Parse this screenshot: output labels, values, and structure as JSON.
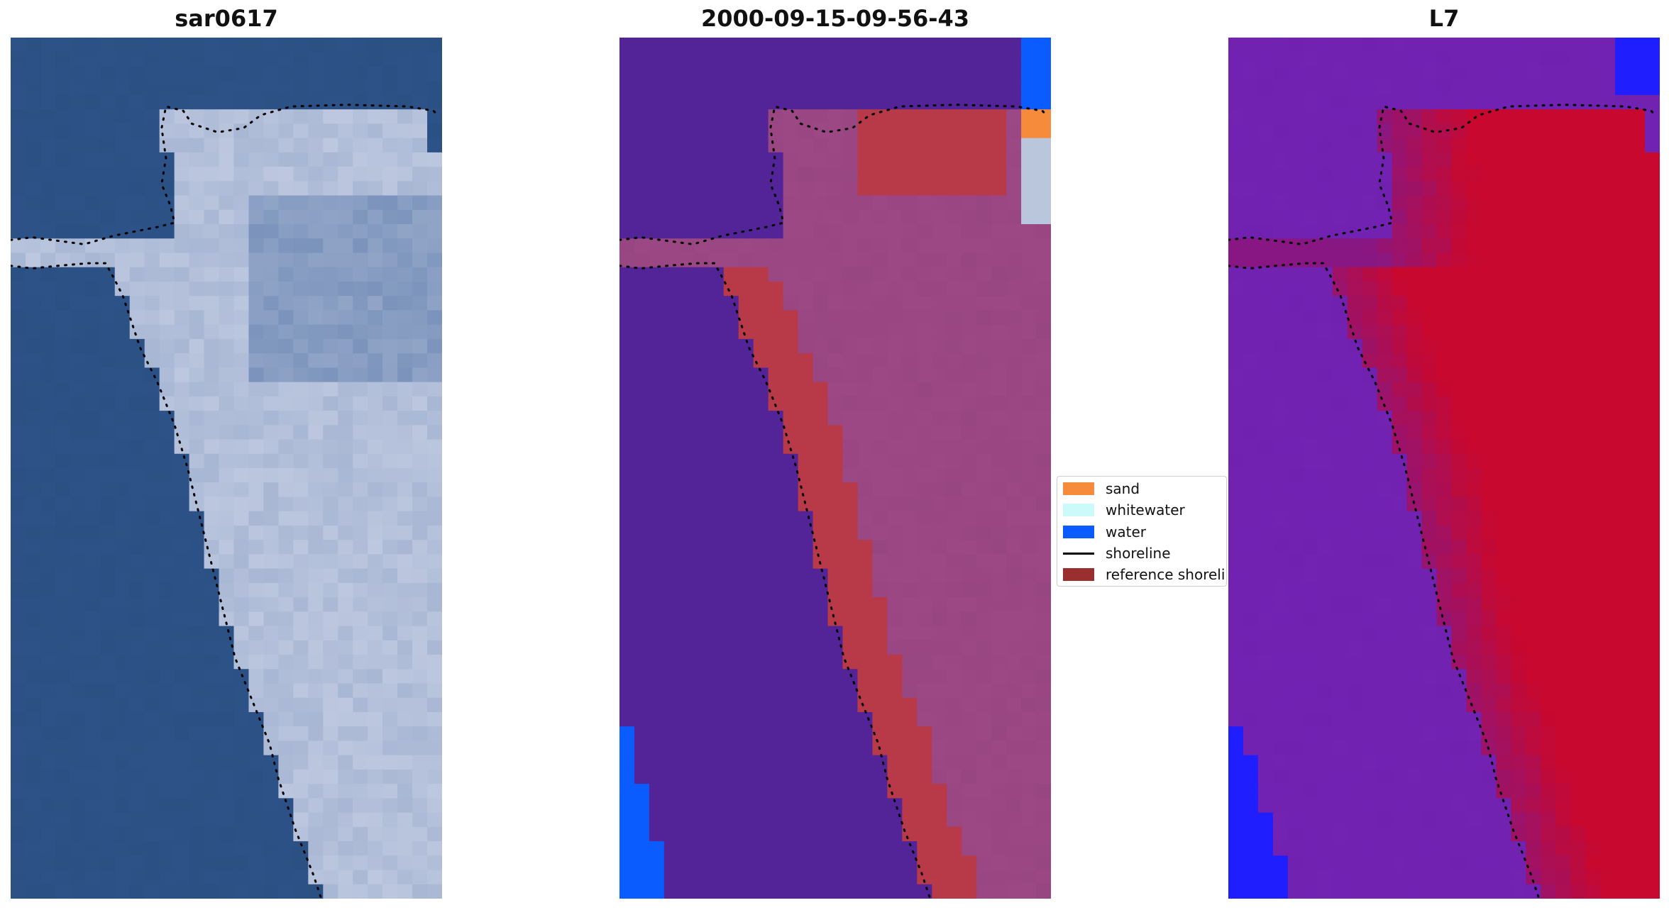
{
  "panels": [
    {
      "title": "sar0617",
      "type": "rgb"
    },
    {
      "title": "2000-09-15-09-56-43",
      "type": "classified"
    },
    {
      "title": "L7",
      "type": "index"
    }
  ],
  "legend": {
    "items": [
      {
        "label": "sand",
        "color": "#f58b3b",
        "kind": "patch"
      },
      {
        "label": "whitewater",
        "color": "#ccfafa",
        "kind": "patch"
      },
      {
        "label": "water",
        "color": "#0a5cff",
        "kind": "patch"
      },
      {
        "label": "shoreline",
        "color": "#000000",
        "kind": "line"
      },
      {
        "label": "reference shoreline",
        "color": "#9b2f2f",
        "kind": "patch"
      }
    ]
  },
  "colors": {
    "sea_rgb": "#2d5690",
    "land_rgb": "#dfe2f2",
    "class_background": "#522497",
    "class_water": "#0a5cff",
    "class_sand": "#f58b3b",
    "class_whitewater": "#b9c6dc",
    "class_landtint": "#a8528f",
    "class_refshore": "#b83a48",
    "index_low": "#6d1ea8",
    "index_high": "#c8082e",
    "index_water": "#1e1eff"
  }
}
